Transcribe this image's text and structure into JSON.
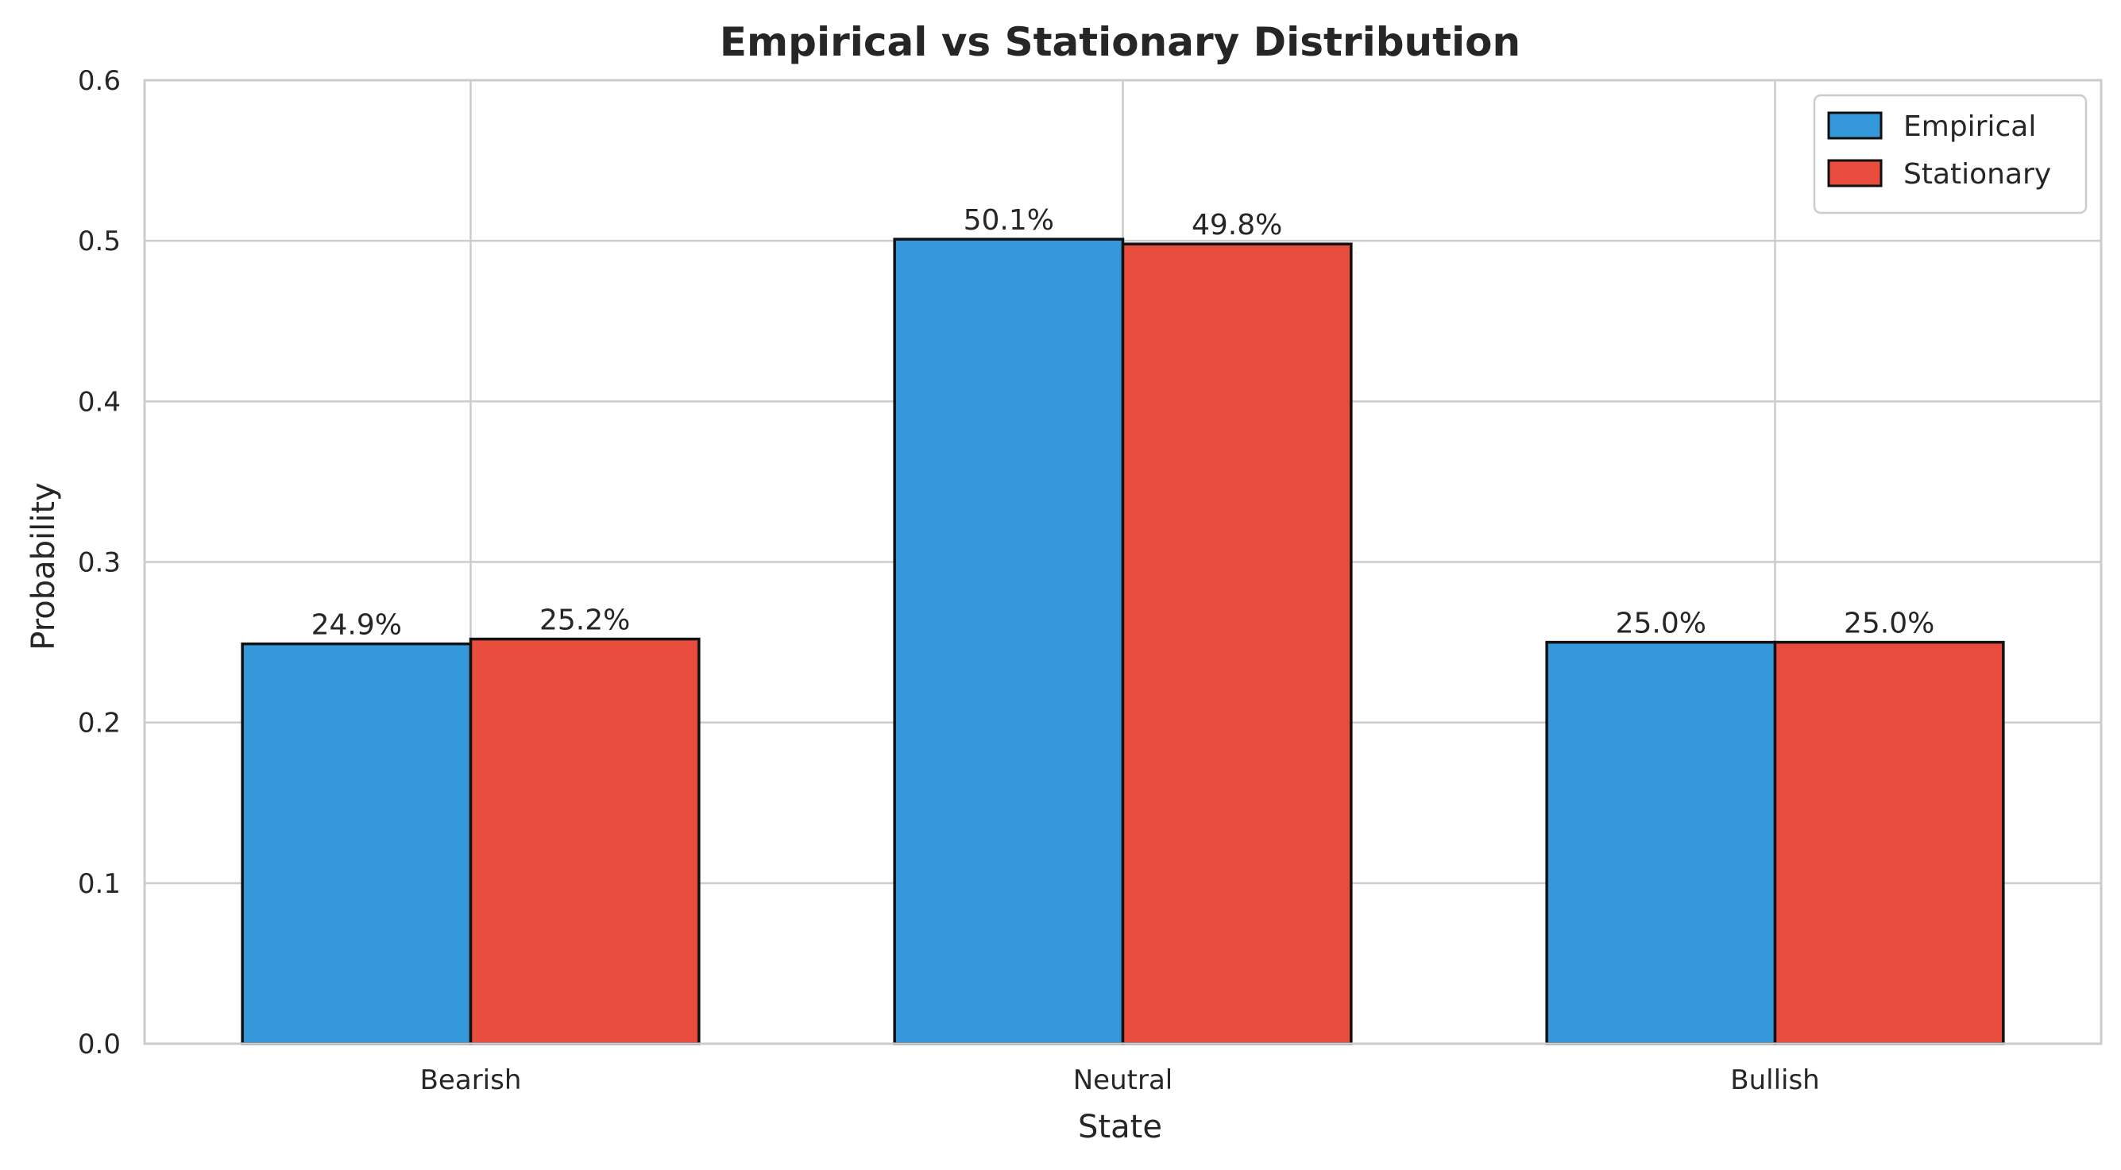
{
  "chart_data": {
    "type": "bar",
    "title": "Empirical vs Stationary Distribution",
    "xlabel": "State",
    "ylabel": "Probability",
    "categories": [
      "Bearish",
      "Neutral",
      "Bullish"
    ],
    "ylim": [
      0,
      0.6
    ],
    "yticks": [
      "0.0",
      "0.1",
      "0.2",
      "0.3",
      "0.4",
      "0.5",
      "0.6"
    ],
    "grid": true,
    "legend_position": "top-right",
    "series": [
      {
        "name": "Empirical",
        "color": "#3498db",
        "values": [
          0.249,
          0.501,
          0.25
        ],
        "labels": [
          "24.9%",
          "50.1%",
          "25.0%"
        ]
      },
      {
        "name": "Stationary",
        "color": "#e74c3c",
        "values": [
          0.252,
          0.498,
          0.25
        ],
        "labels": [
          "25.2%",
          "49.8%",
          "25.0%"
        ]
      }
    ]
  }
}
